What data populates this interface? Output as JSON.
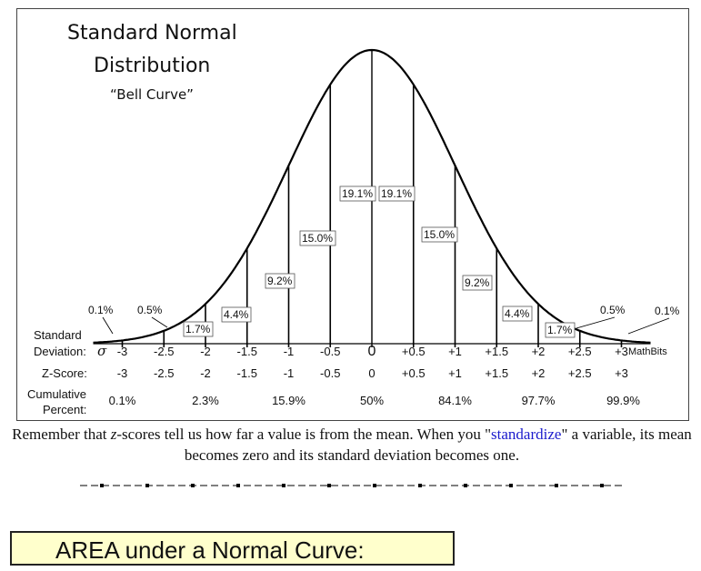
{
  "figure": {
    "title_line1": "Standard Normal",
    "title_line2": "Distribution",
    "subtitle": "“Bell Curve”",
    "percents": [
      {
        "text": "0.1%"
      },
      {
        "text": "0.5%"
      },
      {
        "text": "1.7%"
      },
      {
        "text": "4.4%"
      },
      {
        "text": "9.2%"
      },
      {
        "text": "15.0%"
      },
      {
        "text": "19.1%"
      },
      {
        "text": "19.1%"
      },
      {
        "text": "15.0%"
      },
      {
        "text": "9.2%"
      },
      {
        "text": "4.4%"
      },
      {
        "text": "1.7%"
      },
      {
        "text": "0.5%"
      },
      {
        "text": "0.1%"
      }
    ],
    "sd_row_label_1": "Standard",
    "sd_row_label_2": "Deviation:",
    "sigma": "σ",
    "sd_values": [
      "-3",
      "-2.5",
      "-2",
      "-1.5",
      "-1",
      "-0.5",
      "0",
      "+0.5",
      "+1",
      "+1.5",
      "+2",
      "+2.5",
      "+3"
    ],
    "mathbits": "MathBits",
    "z_label": "Z-Score:",
    "z_values": [
      "-3",
      "-2.5",
      "-2",
      "-1.5",
      "-1",
      "-0.5",
      "0",
      "+0.5",
      "+1",
      "+1.5",
      "+2",
      "+2.5",
      "+3"
    ],
    "cum_label_1": "Cumulative",
    "cum_label_2": "Percent:",
    "cum_values": [
      "0.1%",
      "2.3%",
      "15.9%",
      "50%",
      "84.1%",
      "97.7%",
      "99.9%"
    ]
  },
  "caption": {
    "part1": "Remember that ",
    "z": "z",
    "part2": "-scores tell us how far a value is from the mean. When you \"",
    "link": "standardize",
    "part3": "\" a variable, its mean becomes zero and its standard deviation becomes one."
  },
  "area_title": "AREA under a Normal Curve:"
}
